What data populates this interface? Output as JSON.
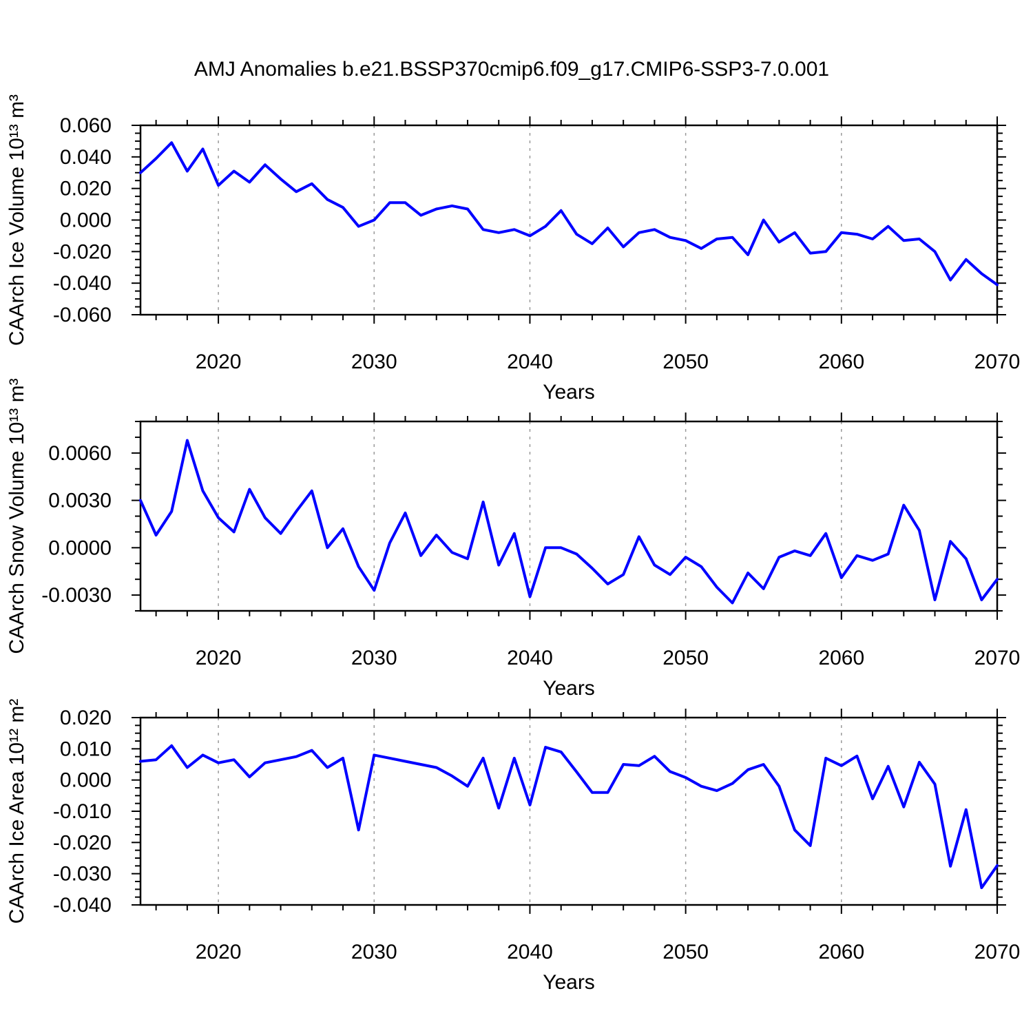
{
  "title": "AMJ Anomalies b.e21.BSSP370cmip6.f09_g17.CMIP6-SSP3-7.0.001",
  "xlabel": "Years",
  "xlim": [
    2015,
    2070
  ],
  "xticks": [
    2020,
    2030,
    2040,
    2050,
    2060,
    2070
  ],
  "xtick_labels": [
    "2020",
    "2030",
    "2040",
    "2050",
    "2060",
    "2070"
  ],
  "xminor_step": 2,
  "style": {
    "line_color": "#0000ff",
    "grid_color": "#999999",
    "axis_color": "#000000",
    "background": "#ffffff"
  },
  "years": [
    2015,
    2016,
    2017,
    2018,
    2019,
    2020,
    2021,
    2022,
    2023,
    2024,
    2025,
    2026,
    2027,
    2028,
    2029,
    2030,
    2031,
    2032,
    2033,
    2034,
    2035,
    2036,
    2037,
    2038,
    2039,
    2040,
    2041,
    2042,
    2043,
    2044,
    2045,
    2046,
    2047,
    2048,
    2049,
    2050,
    2051,
    2052,
    2053,
    2054,
    2055,
    2056,
    2057,
    2058,
    2059,
    2060,
    2061,
    2062,
    2063,
    2064,
    2065,
    2066,
    2067,
    2068,
    2069,
    2070
  ],
  "chart_data": [
    {
      "id": "ice-volume",
      "type": "line",
      "title": "AMJ Anomalies b.e21.BSSP370cmip6.f09_g17.CMIP6-SSP3-7.0.001",
      "ylabel": "CAArch Ice Volume 10¹³ m³",
      "xlabel": "Years",
      "ylim": [
        -0.06,
        0.06
      ],
      "yminor_step": 0.005,
      "grid": "vertical-dashed",
      "legend": "none",
      "yticks": [
        {
          "v": 0.06,
          "label": "0.060"
        },
        {
          "v": 0.04,
          "label": "0.040"
        },
        {
          "v": 0.02,
          "label": "0.020"
        },
        {
          "v": 0.0,
          "label": "0.000"
        },
        {
          "v": -0.02,
          "label": "-0.020"
        },
        {
          "v": -0.04,
          "label": "-0.040"
        },
        {
          "v": -0.06,
          "label": "-0.060"
        }
      ],
      "values": [
        0.03,
        0.039,
        0.049,
        0.031,
        0.045,
        0.022,
        0.031,
        0.024,
        0.035,
        0.026,
        0.018,
        0.023,
        0.013,
        0.008,
        -0.004,
        0.0,
        0.011,
        0.011,
        0.003,
        0.007,
        0.009,
        0.007,
        -0.006,
        -0.008,
        -0.006,
        -0.01,
        -0.004,
        0.006,
        -0.009,
        -0.015,
        -0.005,
        -0.017,
        -0.008,
        -0.006,
        -0.011,
        -0.013,
        -0.018,
        -0.012,
        -0.011,
        -0.022,
        0.0,
        -0.014,
        -0.008,
        -0.021,
        -0.02,
        -0.008,
        -0.009,
        -0.012,
        -0.004,
        -0.013,
        -0.012,
        -0.02,
        -0.038,
        -0.025,
        -0.034,
        -0.041
      ]
    },
    {
      "id": "snow-volume",
      "type": "line",
      "title": "",
      "ylabel": "CAArch Snow Volume 10¹³ m³",
      "xlabel": "Years",
      "ylim": [
        -0.004,
        0.008
      ],
      "yminor_step": 0.001,
      "grid": "vertical-dashed",
      "legend": "none",
      "yticks": [
        {
          "v": 0.006,
          "label": "0.0060"
        },
        {
          "v": 0.003,
          "label": "0.0030"
        },
        {
          "v": 0.0,
          "label": "0.0000"
        },
        {
          "v": -0.003,
          "label": "-0.0030"
        }
      ],
      "values": [
        0.003,
        0.0008,
        0.0023,
        0.0068,
        0.0036,
        0.0019,
        0.001,
        0.0037,
        0.0019,
        0.0009,
        0.0023,
        0.0036,
        0.0,
        0.0012,
        -0.0012,
        -0.0027,
        0.0003,
        0.0022,
        -0.0005,
        0.0008,
        -0.0003,
        -0.0007,
        0.0029,
        -0.0011,
        0.0009,
        -0.0031,
        0.0,
        0.0,
        -0.0004,
        -0.0013,
        -0.0023,
        -0.0017,
        0.0007,
        -0.0011,
        -0.0017,
        -0.0006,
        -0.0012,
        -0.0025,
        -0.0035,
        -0.0016,
        -0.0026,
        -0.0006,
        -0.0002,
        -0.0005,
        0.0009,
        -0.0019,
        -0.0005,
        -0.0008,
        -0.0004,
        0.0027,
        0.0011,
        -0.0033,
        0.0004,
        -0.0007,
        -0.0033,
        -0.002
      ]
    },
    {
      "id": "ice-area",
      "type": "line",
      "title": "",
      "ylabel": "CAArch Ice Area 10¹² m²",
      "xlabel": "Years",
      "ylim": [
        -0.04,
        0.02
      ],
      "yminor_step": 0.0025,
      "grid": "vertical-dashed",
      "legend": "none",
      "yticks": [
        {
          "v": 0.02,
          "label": "0.020"
        },
        {
          "v": 0.01,
          "label": "0.010"
        },
        {
          "v": 0.0,
          "label": "0.000"
        },
        {
          "v": -0.01,
          "label": "-0.010"
        },
        {
          "v": -0.02,
          "label": "-0.020"
        },
        {
          "v": -0.03,
          "label": "-0.030"
        },
        {
          "v": -0.04,
          "label": "-0.040"
        }
      ],
      "values": [
        0.006,
        0.0065,
        0.011,
        0.004,
        0.008,
        0.0055,
        0.0065,
        0.001,
        0.0055,
        0.0065,
        0.0075,
        0.0095,
        0.004,
        0.007,
        -0.016,
        0.008,
        0.007,
        0.006,
        0.005,
        0.004,
        0.0013,
        -0.002,
        0.007,
        -0.009,
        0.007,
        -0.008,
        0.0105,
        0.009,
        0.0026,
        -0.004,
        -0.004,
        0.005,
        0.0046,
        0.0076,
        0.0027,
        0.0008,
        -0.002,
        -0.0034,
        -0.0011,
        0.0033,
        0.005,
        -0.002,
        -0.016,
        -0.021,
        0.007,
        0.0046,
        0.0077,
        -0.006,
        0.0044,
        -0.0086,
        0.0057,
        -0.0013,
        -0.0276,
        -0.0095,
        -0.0345,
        -0.0274
      ]
    }
  ]
}
